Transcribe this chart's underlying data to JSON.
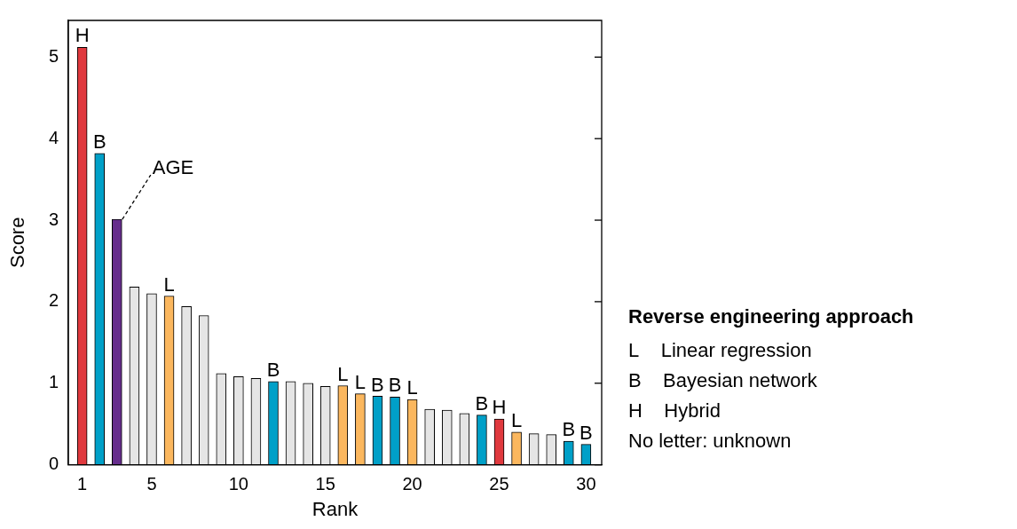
{
  "chart_data": {
    "type": "bar",
    "xlabel": "Rank",
    "ylabel": "Score",
    "x": [
      1,
      2,
      3,
      4,
      5,
      6,
      7,
      8,
      9,
      10,
      11,
      12,
      13,
      14,
      15,
      16,
      17,
      18,
      19,
      20,
      21,
      22,
      23,
      24,
      25,
      26,
      27,
      28,
      29,
      30
    ],
    "values": [
      5.12,
      3.82,
      3.01,
      2.18,
      2.1,
      2.07,
      1.94,
      1.83,
      1.12,
      1.08,
      1.06,
      1.02,
      1.02,
      1.0,
      0.96,
      0.97,
      0.87,
      0.84,
      0.83,
      0.8,
      0.68,
      0.67,
      0.63,
      0.61,
      0.56,
      0.4,
      0.38,
      0.37,
      0.29,
      0.25
    ],
    "colors": [
      "#e0393e",
      "#00a0c8",
      "#662d8c",
      "#e5e5e5",
      "#e5e5e5",
      "#fbb75e",
      "#e5e5e5",
      "#e5e5e5",
      "#e5e5e5",
      "#e5e5e5",
      "#e5e5e5",
      "#00a0c8",
      "#e5e5e5",
      "#e5e5e5",
      "#e5e5e5",
      "#fbb75e",
      "#fbb75e",
      "#00a0c8",
      "#00a0c8",
      "#fbb75e",
      "#e5e5e5",
      "#e5e5e5",
      "#e5e5e5",
      "#00a0c8",
      "#e0393e",
      "#fbb75e",
      "#e5e5e5",
      "#e5e5e5",
      "#00a0c8",
      "#00a0c8"
    ],
    "xlim": [
      0.2,
      30.9
    ],
    "xticks": [
      1,
      5,
      10,
      15,
      20,
      25,
      30
    ],
    "ylim": [
      0,
      5.45
    ],
    "yticks": [
      0,
      1,
      2,
      3,
      4,
      5
    ],
    "annotations": [
      {
        "text": "H",
        "x": 1,
        "y": 5.12
      },
      {
        "text": "B",
        "x": 2,
        "y": 3.82
      },
      {
        "text": "AGE",
        "x": 3,
        "y": 3.01
      },
      {
        "text": "L",
        "x": 6,
        "y": 2.07
      },
      {
        "text": "B",
        "x": 12,
        "y": 1.02
      },
      {
        "text": "L",
        "x": 16,
        "y": 0.97
      },
      {
        "text": "L",
        "x": 17,
        "y": 0.87
      },
      {
        "text": "B",
        "x": 18,
        "y": 0.84
      },
      {
        "text": "B",
        "x": 19,
        "y": 0.83
      },
      {
        "text": "L",
        "x": 20,
        "y": 0.8
      },
      {
        "text": "B",
        "x": 24,
        "y": 0.61
      },
      {
        "text": "H",
        "x": 25,
        "y": 0.56
      },
      {
        "text": "L",
        "x": 26,
        "y": 0.4
      },
      {
        "text": "B",
        "x": 29,
        "y": 0.29
      },
      {
        "text": "B",
        "x": 30,
        "y": 0.25
      },
      "Reverse engineering approach",
      "L    Linear regression",
      "B    Bayesian network",
      "H    Hybrid",
      "No letter: unknown"
    ]
  }
}
